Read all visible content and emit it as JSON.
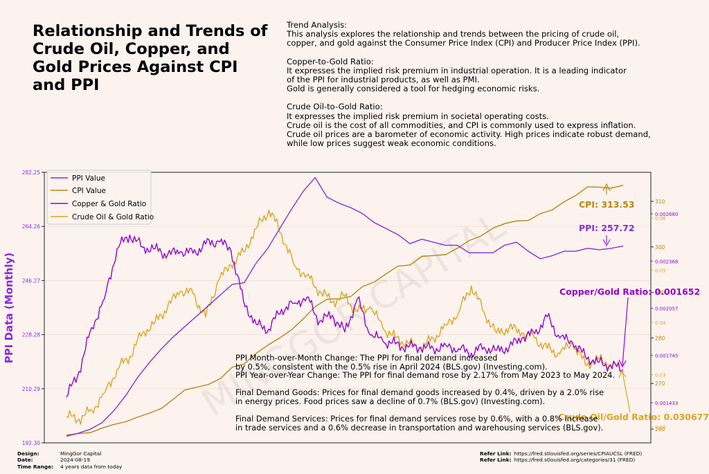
{
  "title": "Relationship and Trends of Crude Oil, Copper, and Gold Prices Against CPI and PPI",
  "analysis": [
    {
      "heading": "Trend Analysis:",
      "lines": [
        "This analysis explores the relationship and trends between the pricing of crude oil,",
        "copper, and gold against the Consumer Price Index (CPI) and Producer Price Index (PPI)."
      ]
    },
    {
      "heading": "Copper-to-Gold Ratio:",
      "lines": [
        "It expresses the implied risk premium in industrial operation. It is a leading indicator",
        "of the PPI for industrial products, as well as PMI.",
        "Gold is generally considered a tool for hedging economic risks."
      ]
    },
    {
      "heading": "Crude Oil-to-Gold Ratio:",
      "lines": [
        "It expresses the implied risk premium in societal operating costs.",
        "Crude oil is the cost of all commodities, and CPI is commonly used to express inflation.",
        "Crude oil prices are a barometer of economic activity. High prices indicate robust demand,",
        "while low prices suggest weak economic conditions."
      ]
    }
  ],
  "notes": [
    [
      "PPI Month-over-Month Change: The PPI for final demand increased",
      "by 0.5%, consistent with the 0.5% rise in April 2024 (BLS.gov) (Investing.com).",
      "PPI Year-over-Year Change: The PPI for final demand rose by 2.17% from May 2023 to May 2024."
    ],
    [
      "Final Demand Goods: Prices for final demand goods increased by 0.4%, driven by a 2.0% rise",
      "in energy prices. Food prices saw a decline of 0.7% (BLS.gov) (Investing.com)."
    ],
    [
      "Final Demand Services: Prices for final demand services rose by 0.6%, with a 0.8% increase",
      "in trade services and a 0.6% decrease in transportation and warehousing services (BLS.gov)."
    ]
  ],
  "watermark": "MINGGOR CAPITAL",
  "footer": {
    "left": [
      {
        "key": "Design:",
        "value": "MingGor Capital"
      },
      {
        "key": "Date:",
        "value": "2024-08-19"
      },
      {
        "key": "Time Range:",
        "value": "4 years data from today"
      }
    ],
    "right": [
      {
        "key": "Refer Link:",
        "value": "https://fred.stlouisfed.org/series/CPIAUCSL (FRED)"
      },
      {
        "key": "Refer Link:",
        "value": "https://fred.stlouisfed.org/categories/31 (FRED)"
      }
    ]
  },
  "colors": {
    "ppi": "#8a2be2",
    "cpi": "#b8860b",
    "copper_gold": "#9400d3",
    "oil_gold": "#daa520",
    "grid": "#e8d8d0"
  },
  "chart_data": {
    "type": "line",
    "ylabel": "PPI Data (Monthly)",
    "legend_position": "top-left",
    "grid": true,
    "ppi_axis": {
      "ylim": [
        192.3,
        282.25
      ],
      "ticks": [
        "192.30",
        "210.29",
        "228.28",
        "246.27",
        "264.26",
        "282.25"
      ]
    },
    "cpi_axis": {
      "ticks": [
        "260",
        "270",
        "280",
        "290",
        "300",
        "310"
      ]
    },
    "copper_gold_axis": {
      "ticks": [
        "0.001433",
        "0.001745",
        "0.002057",
        "0.002368",
        "0.002680"
      ]
    },
    "oil_gold_axis": {
      "ticks": [
        "0.02",
        "0.03",
        "0.04",
        "0.05",
        "0.06"
      ]
    },
    "series": [
      {
        "name": "PPI Value",
        "values": [
          194.5,
          195.5,
          196.8,
          199.0,
          203.0,
          208.0,
          214.0,
          219.0,
          223.5,
          227.5,
          231.0,
          234.5,
          238.0,
          241.5,
          245.0,
          245.5,
          252.0,
          257.0,
          263.5,
          270.0,
          276.0,
          280.5,
          274.0,
          272.0,
          270.5,
          268.5,
          265.5,
          263.5,
          261.5,
          258.5,
          260.0,
          259.0,
          258.0,
          258.0,
          255.5,
          255.5,
          255.5,
          258.0,
          259.0,
          256.0,
          253.5,
          254.5,
          256.0,
          256.0,
          257.0,
          256.5,
          257.0,
          257.72
        ]
      },
      {
        "name": "CPI Value",
        "values": [
          258.7,
          259.0,
          259.2,
          260.2,
          261.0,
          261.6,
          262.6,
          263.5,
          264.5,
          266.5,
          268.6,
          269.2,
          269.8,
          271.1,
          273.6,
          274.3,
          276.6,
          278.4,
          280.0,
          281.8,
          284.2,
          286.9,
          288.5,
          288.6,
          289.1,
          291.3,
          292.3,
          294.1,
          295.8,
          296.0,
          297.9,
          298.1,
          298.3,
          299.7,
          301.4,
          302.4,
          304.1,
          305.1,
          305.7,
          305.8,
          307.3,
          308.1,
          309.9,
          311.3,
          313.2,
          313.1,
          312.9,
          313.53
        ]
      },
      {
        "name": "Copper & Gold Ratio",
        "values": [
          0.00147,
          0.00164,
          0.00193,
          0.00212,
          0.00245,
          0.00254,
          0.00246,
          0.00245,
          0.00241,
          0.00243,
          0.00242,
          0.00248,
          0.0025,
          0.00244,
          0.0021,
          0.00195,
          0.00192,
          0.00205,
          0.00209,
          0.00213,
          0.00197,
          0.00201,
          0.0019,
          0.00212,
          0.00188,
          0.00184,
          0.00182,
          0.0018,
          0.0018,
          0.00179,
          0.00181,
          0.00179,
          0.00176,
          0.0018,
          0.00178,
          0.0018,
          0.00186,
          0.00189,
          0.002,
          0.00186,
          0.00183,
          0.00174,
          0.0017,
          0.00168,
          0.001652
        ]
      },
      {
        "name": "Crude Oil & Gold Ratio",
        "values": [
          0.022,
          0.0215,
          0.0232,
          0.0265,
          0.031,
          0.0335,
          0.038,
          0.04,
          0.043,
          0.046,
          0.0455,
          0.041,
          0.048,
          0.051,
          0.0535,
          0.058,
          0.0615,
          0.057,
          0.051,
          0.049,
          0.046,
          0.044,
          0.045,
          0.042,
          0.043,
          0.039,
          0.037,
          0.036,
          0.035,
          0.037,
          0.0395,
          0.042,
          0.047,
          0.042,
          0.038,
          0.039,
          0.038,
          0.037,
          0.035,
          0.034,
          0.036,
          0.032,
          0.033,
          0.032,
          0.030677
        ]
      }
    ],
    "annotations": [
      {
        "text": "CPI: 313.53"
      },
      {
        "text": "PPI: 257.72"
      },
      {
        "text": "Copper/Gold Ratio: 0.001652"
      },
      {
        "text": "Crude Oil/Gold Ratio: 0.030677"
      }
    ]
  }
}
